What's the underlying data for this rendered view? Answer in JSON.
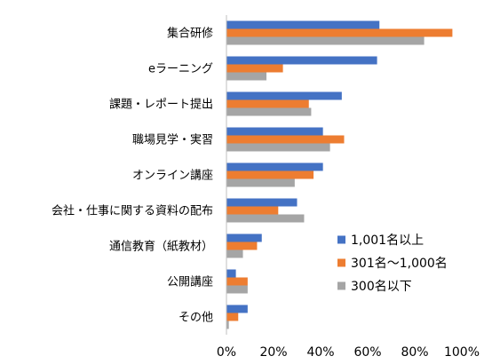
{
  "chart_data": {
    "type": "bar",
    "orientation": "horizontal",
    "categories": [
      "集合研修",
      "eラーニング",
      "課題・レポート提出",
      "職場見学・実習",
      "オンライン講座",
      "会社・仕事に関する資料の配布",
      "通信教育（紙教材）",
      "公開講座",
      "その他"
    ],
    "series": [
      {
        "name": "1,001名以上",
        "color": "#4472C4",
        "values": [
          65,
          64,
          49,
          41,
          41,
          30,
          15,
          4,
          9
        ]
      },
      {
        "name": "301名～1,000名",
        "color": "#ED7D31",
        "values": [
          96,
          24,
          35,
          50,
          37,
          22,
          13,
          9,
          5
        ]
      },
      {
        "name": "300名以下",
        "color": "#A5A5A5",
        "values": [
          84,
          17,
          36,
          44,
          29,
          33,
          7,
          9,
          1
        ]
      }
    ],
    "xlim": [
      0,
      100
    ],
    "x_ticks": [
      "0%",
      "20%",
      "40%",
      "60%",
      "80%",
      "100%"
    ],
    "grid": false,
    "legend_position": "bottom-right"
  }
}
